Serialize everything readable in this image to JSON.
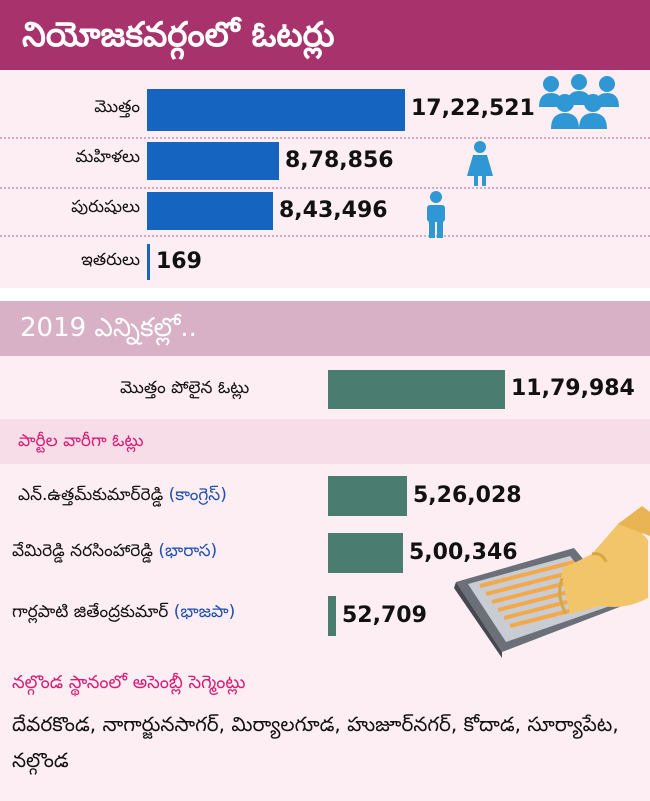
{
  "header": {
    "title": "నియోజకవర్గంలో ఓటర్లు"
  },
  "chart_data": [
    {
      "type": "bar",
      "categories": [
        "మొత్తం",
        "మహిళలు",
        "పురుషులు",
        "ఇతరులు"
      ],
      "values": [
        1722521,
        878856,
        843496,
        169
      ],
      "value_labels": [
        "17,22,521",
        "8,78,856",
        "8,43,496",
        "169"
      ],
      "color": "#1565c0"
    },
    {
      "type": "bar",
      "categories": [
        "మొత్తం పోలైన ఓట్లు"
      ],
      "values": [
        1179984
      ],
      "value_labels": [
        "11,79,984"
      ],
      "color": "#4a7d70"
    },
    {
      "type": "bar",
      "title": "పార్టీల వారీగా ఓట్లు",
      "categories": [
        "ఎన్.ఉత్తమ్‌కుమార్‌రెడ్డి (కాంగ్రెస్)",
        "వేమిరెడ్డి నరసింహారెడ్డి (భారాస)",
        "గార్లపాటి జితేంద్రకుమార్ (భాజపా)"
      ],
      "candidates": [
        "ఎన్.ఉత్తమ్‌కుమార్‌రెడ్డి",
        "వేమిరెడ్డి నరసింహారెడ్డి",
        "గార్లపాటి జితేంద్రకుమార్"
      ],
      "parties": [
        "(కాంగ్రెస్)",
        "(భారాస)",
        "(భాజపా)"
      ],
      "values": [
        526028,
        500346,
        52709
      ],
      "value_labels": [
        "5,26,028",
        "5,00,346",
        "52,709"
      ],
      "color": "#4a7d70"
    }
  ],
  "election": {
    "year_heading": "2019 ఎన్నికల్లో.."
  },
  "assembly": {
    "heading": "నల్గొండ స్థానంలో అసెంబ్లీ సెగ్మెంట్లు",
    "segments": "దేవరకొండ, నాగార్జునసాగర్, మిర్యాలగూడ, హుజూర్‌నగర్, కోదాడ, సూర్యాపేట, నల్గొండ"
  },
  "icons": [
    "group-people-icon",
    "woman-icon",
    "man-icon",
    "voting-machine-icon",
    "hand-pointer-icon"
  ]
}
